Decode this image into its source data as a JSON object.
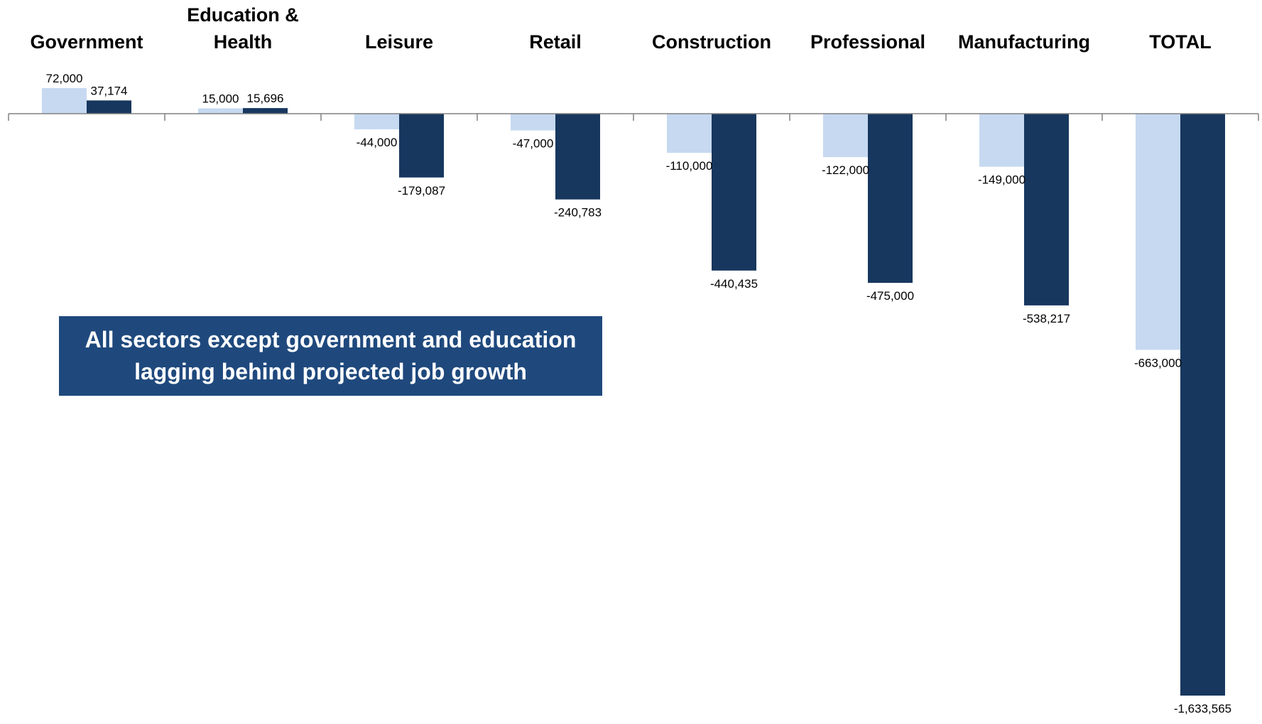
{
  "chart_data": {
    "type": "bar",
    "categories": [
      [
        "Government"
      ],
      [
        "Education &",
        "Health"
      ],
      [
        "Leisure"
      ],
      [
        "Retail"
      ],
      [
        "Construction"
      ],
      [
        "Professional"
      ],
      [
        "Manufacturing"
      ],
      [
        "TOTAL"
      ]
    ],
    "series": [
      {
        "color": "#c6d9f1",
        "values": [
          72000,
          15000,
          -44000,
          -47000,
          -110000,
          -122000,
          -149000,
          -663000
        ],
        "labels": [
          "72,000",
          "15,000",
          "-44,000",
          "-47,000",
          "-110,000",
          "-122,000",
          "-149,000",
          "-663,000"
        ]
      },
      {
        "color": "#17375e",
        "values": [
          37174,
          15696,
          -179087,
          -240783,
          -440435,
          -475000,
          -538217,
          -1633565
        ],
        "labels": [
          "37,174",
          "15,696",
          "-179,087",
          "-240,783",
          "-440,435",
          "-475,000",
          "-538,217",
          "-1,633,565"
        ]
      }
    ],
    "ylim": [
      -1800000,
      300000
    ],
    "grid": false,
    "legend": "none"
  },
  "callout": {
    "lines": [
      "All sectors except government and education",
      "lagging behind projected job growth"
    ],
    "background": "#1f497d",
    "text_color": "#ffffff"
  },
  "axis_color": "#808080"
}
